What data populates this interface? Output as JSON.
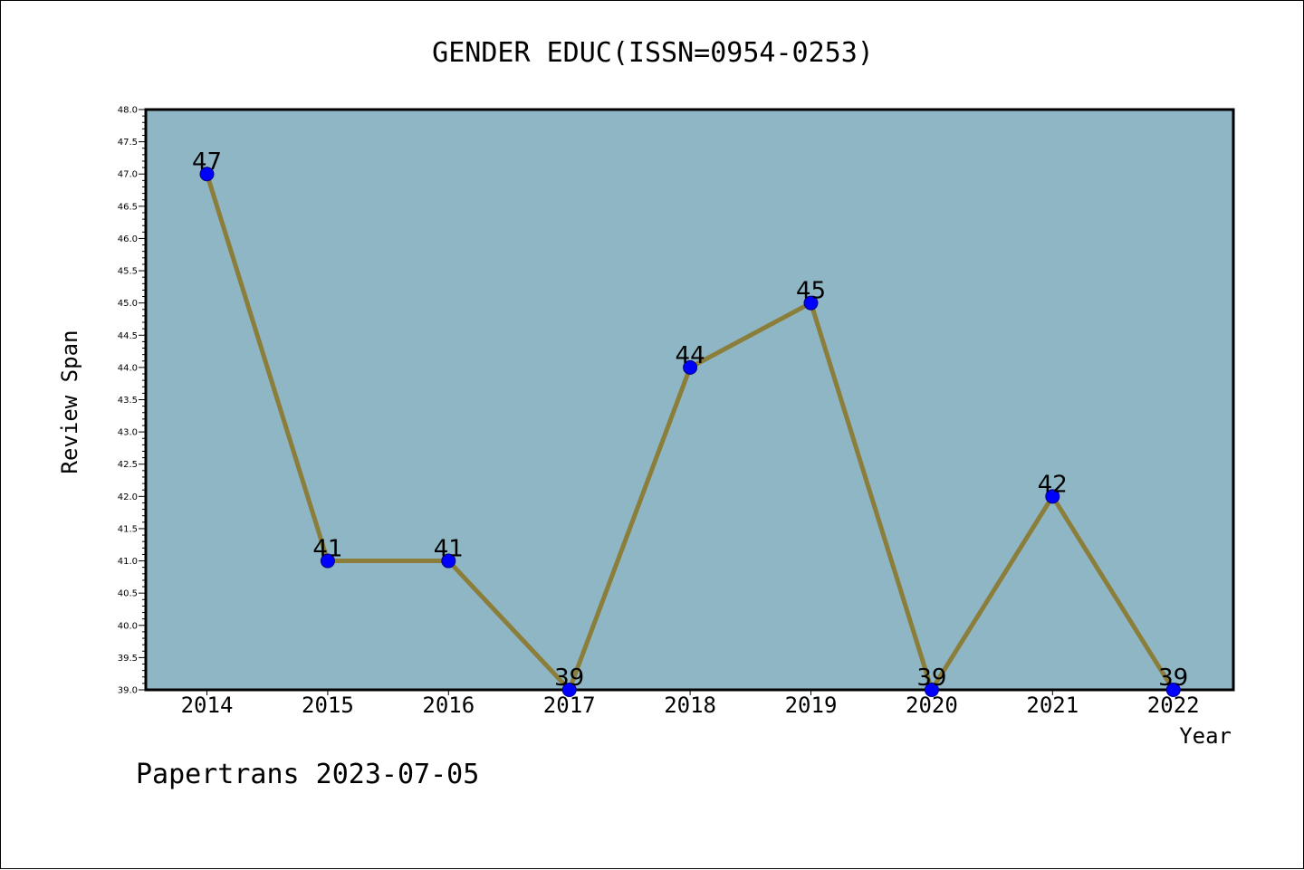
{
  "chart_data": {
    "type": "line",
    "title": "GENDER EDUC(ISSN=0954-0253)",
    "xlabel": "Year",
    "ylabel": "Review Span",
    "footer": "Papertrans 2023-07-05",
    "categories": [
      "2014",
      "2015",
      "2016",
      "2017",
      "2018",
      "2019",
      "2020",
      "2021",
      "2022"
    ],
    "values": [
      47,
      41,
      41,
      39,
      44,
      45,
      39,
      42,
      39
    ],
    "ylim": [
      39.0,
      48.0
    ],
    "y_major_step": 0.5,
    "y_tick_labels": [
      "39.0",
      "39.5",
      "40.0",
      "40.5",
      "41.0",
      "41.5",
      "42.0",
      "42.5",
      "43.0",
      "43.5",
      "44.0",
      "44.5",
      "45.0",
      "45.5",
      "46.0",
      "46.5",
      "47.0",
      "47.5",
      "48.0"
    ],
    "grid": false,
    "legend": "none",
    "colors": {
      "plot_background": "#8fb6c5",
      "line": "#8b7d3a",
      "marker": "#0000ff",
      "marker_edge": "#000080"
    }
  }
}
